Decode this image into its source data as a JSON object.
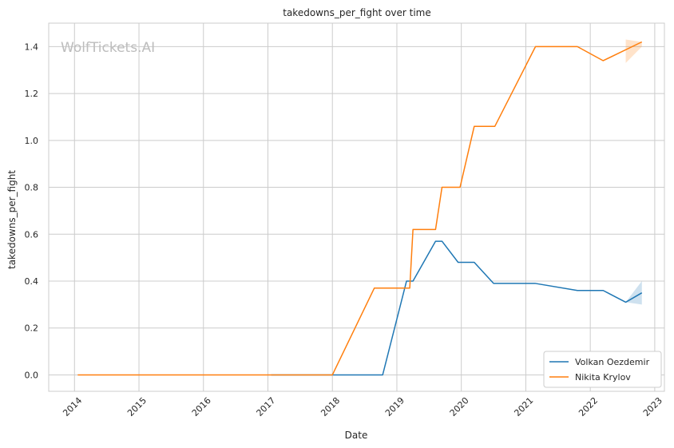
{
  "chart_data": {
    "type": "line",
    "title": "takedowns_per_fight over time",
    "xlabel": "Date",
    "ylabel": "takedowns_per_fight",
    "watermark": "WolfTickets.AI",
    "xlim": [
      2013.6,
      2023.15
    ],
    "ylim": [
      -0.07,
      1.5
    ],
    "x_ticks": [
      2014,
      2015,
      2016,
      2017,
      2018,
      2019,
      2020,
      2021,
      2022,
      2023
    ],
    "x_tick_labels": [
      "2014",
      "2015",
      "2016",
      "2017",
      "2018",
      "2019",
      "2020",
      "2021",
      "2022",
      "2023"
    ],
    "y_ticks": [
      0.0,
      0.2,
      0.4,
      0.6,
      0.8,
      1.0,
      1.2,
      1.4
    ],
    "y_tick_labels": [
      "0.0",
      "0.2",
      "0.4",
      "0.6",
      "0.8",
      "1.0",
      "1.2",
      "1.4"
    ],
    "grid": true,
    "legend_position": "lower-right",
    "series": [
      {
        "name": "Volkan Oezdemir",
        "color": "#1f77b4",
        "x": [
          2017.05,
          2017.5,
          2018.0,
          2018.5,
          2018.78,
          2019.15,
          2019.25,
          2019.6,
          2019.7,
          2019.95,
          2020.2,
          2020.5,
          2021.15,
          2021.8,
          2022.2,
          2022.55,
          2022.8
        ],
        "y": [
          0.0,
          0.0,
          0.0,
          0.0,
          0.0,
          0.4,
          0.4,
          0.57,
          0.57,
          0.48,
          0.48,
          0.39,
          0.39,
          0.36,
          0.36,
          0.31,
          0.35
        ],
        "band": {
          "x": [
            2022.55,
            2022.8
          ],
          "low": [
            0.31,
            0.3
          ],
          "high": [
            0.31,
            0.4
          ]
        }
      },
      {
        "name": "Nikita Krylov",
        "color": "#ff7f0e",
        "x": [
          2014.05,
          2015.0,
          2016.0,
          2017.0,
          2018.0,
          2018.65,
          2019.2,
          2019.25,
          2019.6,
          2019.7,
          2019.98,
          2020.2,
          2020.52,
          2021.15,
          2021.8,
          2022.2,
          2022.8
        ],
        "y": [
          0.0,
          0.0,
          0.0,
          0.0,
          0.0,
          0.37,
          0.37,
          0.62,
          0.62,
          0.8,
          0.8,
          1.06,
          1.06,
          1.4,
          1.4,
          1.34,
          1.42
        ],
        "band": {
          "x": [
            2022.55,
            2022.8
          ],
          "low": [
            1.33,
            1.4
          ],
          "high": [
            1.43,
            1.42
          ]
        }
      }
    ]
  }
}
